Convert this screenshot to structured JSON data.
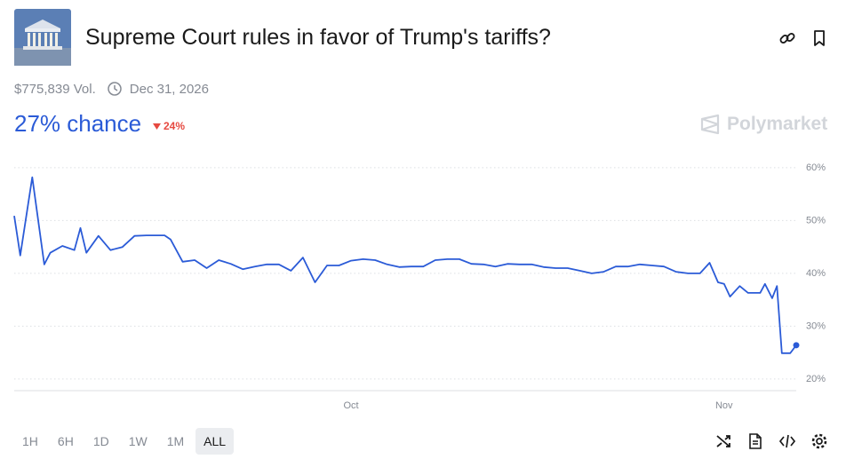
{
  "header": {
    "title": "Supreme Court rules in favor of Trump's tariffs?"
  },
  "stats": {
    "volume": "$775,839 Vol.",
    "end_date": "Dec 31, 2026"
  },
  "odds": {
    "chance": "27% chance",
    "change": "24%"
  },
  "brand": "Polymarket",
  "timeframes": [
    "1H",
    "6H",
    "1D",
    "1W",
    "1M",
    "ALL"
  ],
  "chart_data": {
    "type": "line",
    "x": [
      0,
      0.5,
      1.5,
      2.5,
      3,
      4,
      5,
      5.5,
      6,
      7,
      8,
      9,
      10,
      11,
      12.5,
      13,
      14,
      15,
      16,
      17,
      18,
      19,
      20,
      21,
      22,
      23,
      24,
      25,
      26,
      27,
      28,
      29,
      30,
      31,
      32,
      33,
      34,
      35,
      36,
      37,
      38,
      39,
      40,
      41,
      42,
      43,
      44,
      45,
      46,
      47,
      48,
      49,
      50,
      51,
      52,
      53,
      54,
      55,
      56,
      57,
      57.8,
      58.5,
      59,
      59.5,
      60.3,
      61,
      62,
      62.4,
      63,
      63.4,
      63.8,
      64.5,
      65
    ],
    "series": [
      {
        "color": "#2b5bd7",
        "values": [
          50.9,
          43.4,
          58.2,
          41.7,
          43.9,
          45.2,
          44.4,
          48.6,
          43.9,
          47.1,
          44.4,
          45,
          47.1,
          47.2,
          47.2,
          46.4,
          42.2,
          42.5,
          41,
          42.5,
          41.8,
          40.8,
          41.3,
          41.7,
          41.7,
          40.5,
          43,
          38.3,
          41.5,
          41.5,
          42.4,
          42.7,
          42.5,
          41.7,
          41.2,
          41.3,
          41.3,
          42.5,
          42.7,
          42.7,
          41.8,
          41.7,
          41.3,
          41.8,
          41.7,
          41.7,
          41.2,
          41,
          41,
          40.5,
          40,
          40.3,
          41.3,
          41.3,
          41.7,
          41.5,
          41.3,
          40.3,
          40,
          40,
          42,
          38.3,
          38,
          35.6,
          37.6,
          36.3,
          36.3,
          38,
          35.3,
          37.6,
          24.9,
          24.9,
          26.4
        ]
      }
    ],
    "xlim": [
      0,
      65
    ],
    "ylim": [
      17.8,
      61.5
    ],
    "xticks": [
      {
        "value": 28,
        "label": "Oct"
      },
      {
        "value": 59,
        "label": "Nov"
      }
    ],
    "yticks": [
      {
        "value": 20,
        "label": "20%"
      },
      {
        "value": 30,
        "label": "30%"
      },
      {
        "value": 40,
        "label": "40%"
      },
      {
        "value": 50,
        "label": "50%"
      },
      {
        "value": 60,
        "label": "60%"
      }
    ],
    "grid": true
  }
}
